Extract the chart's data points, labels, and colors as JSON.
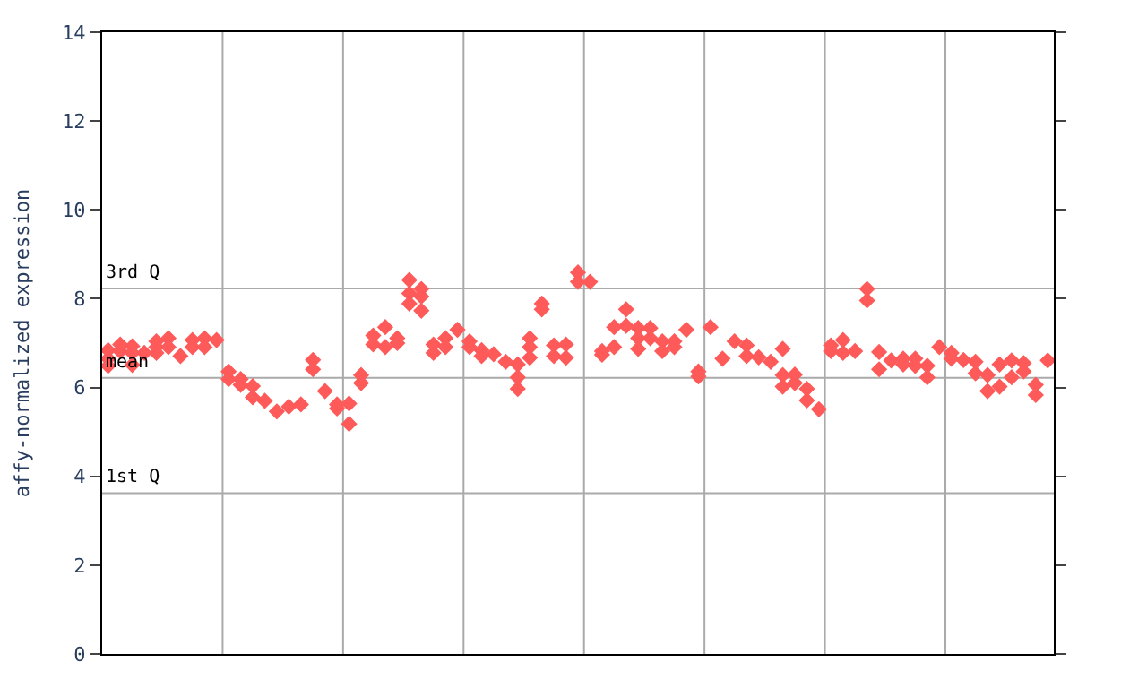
{
  "chart_data": {
    "type": "scatter",
    "ylabel": "affy-normalized expression",
    "categories": [
      null,
      null,
      null,
      null,
      null,
      null,
      null,
      null,
      null,
      null,
      null,
      null,
      null,
      null,
      null,
      null,
      null,
      null,
      null,
      null,
      null,
      null,
      null,
      null,
      null,
      null,
      null,
      null,
      null,
      null,
      null,
      null,
      null,
      null,
      null,
      null,
      null,
      null,
      null,
      null,
      null,
      null,
      null,
      null,
      null,
      null,
      null,
      null,
      null,
      null,
      null,
      null,
      null,
      null,
      null,
      null,
      null,
      null,
      null,
      null,
      null,
      null,
      null,
      null,
      null,
      null,
      null,
      null,
      null,
      null,
      null,
      null,
      null,
      null,
      null,
      null,
      null,
      null,
      null
    ],
    "ylim": [
      0,
      14
    ],
    "yticks": [
      0,
      2,
      4,
      6,
      8,
      10,
      12,
      14
    ],
    "tick_labels": "y",
    "marker": "diamond",
    "ref_lines": [
      {
        "axis": "y",
        "value": 8.23,
        "label": "3rd Q",
        "color": "#aaaaaa"
      },
      {
        "axis": "y",
        "value": 6.22,
        "label": "mean",
        "color": "#aaaaaa"
      },
      {
        "axis": "y",
        "value": 3.62,
        "label": "1st Q",
        "color": "#aaaaaa"
      }
    ],
    "series": [
      {
        "color": "#ff5a5a",
        "values": [
          6.84,
          6.97,
          6.93,
          6.78,
          7.04,
          7.11,
          6.71,
          7.07,
          7.11,
          7.07,
          6.36,
          6.19,
          6.03,
          5.7,
          5.46,
          5.57,
          5.62,
          6.62,
          5.92,
          5.62,
          5.64,
          6.28,
          7.17,
          7.36,
          7.11,
          8.42,
          8.22,
          6.97,
          7.11,
          7.3,
          7.04,
          6.84,
          6.75,
          6.58,
          6.52,
          7.11,
          7.89,
          6.95,
          6.97,
          8.59,
          8.38,
          6.82,
          7.36,
          7.76,
          7.34,
          7.34,
          7.04,
          7.04,
          7.3,
          6.36,
          7.36,
          6.65,
          7.04,
          6.95,
          6.68,
          6.58,
          6.87,
          6.29,
          5.97,
          5.51,
          6.95,
          7.07,
          6.82,
          8.22,
          6.8,
          6.61,
          6.65,
          6.65,
          6.49,
          6.91,
          6.78,
          6.62,
          6.58,
          6.28,
          6.52,
          6.61,
          6.55,
          6.06,
          6.61
        ]
      },
      {
        "color": "#ff5a5a",
        "values": [
          6.65,
          6.82,
          6.78,
          null,
          6.91,
          6.91,
          null,
          6.91,
          6.91,
          null,
          6.19,
          6.06,
          5.78,
          null,
          null,
          null,
          null,
          6.41,
          null,
          5.53,
          5.18,
          6.1,
          6.97,
          6.91,
          7.0,
          8.12,
          8.05,
          6.78,
          6.91,
          null,
          6.91,
          6.71,
          null,
          null,
          6.23,
          6.91,
          7.76,
          6.71,
          6.67,
          8.38,
          null,
          6.74,
          6.91,
          7.39,
          7.11,
          7.11,
          6.82,
          6.91,
          null,
          6.25,
          null,
          null,
          null,
          6.71,
          null,
          null,
          6.28,
          6.1,
          5.71,
          null,
          6.82,
          6.78,
          null,
          7.96,
          6.41,
          null,
          6.52,
          6.49,
          6.23,
          null,
          6.65,
          null,
          6.32,
          5.92,
          6.02,
          6.23,
          6.36,
          5.83,
          null
        ]
      },
      {
        "color": "#ff5a5a",
        "values": [
          6.49,
          null,
          6.51,
          null,
          6.78,
          null,
          null,
          null,
          null,
          null,
          null,
          null,
          null,
          null,
          null,
          null,
          null,
          null,
          null,
          null,
          null,
          null,
          null,
          null,
          null,
          7.89,
          7.73,
          null,
          null,
          null,
          null,
          null,
          null,
          null,
          5.97,
          6.67,
          null,
          null,
          null,
          null,
          null,
          null,
          null,
          null,
          6.87,
          null,
          null,
          null,
          null,
          null,
          null,
          null,
          null,
          null,
          null,
          null,
          6.02,
          null,
          null,
          null,
          null,
          null,
          null,
          null,
          null,
          null,
          null,
          null,
          null,
          null,
          null,
          null,
          null,
          null,
          null,
          null,
          null,
          null,
          null
        ]
      }
    ],
    "grid": "x"
  }
}
